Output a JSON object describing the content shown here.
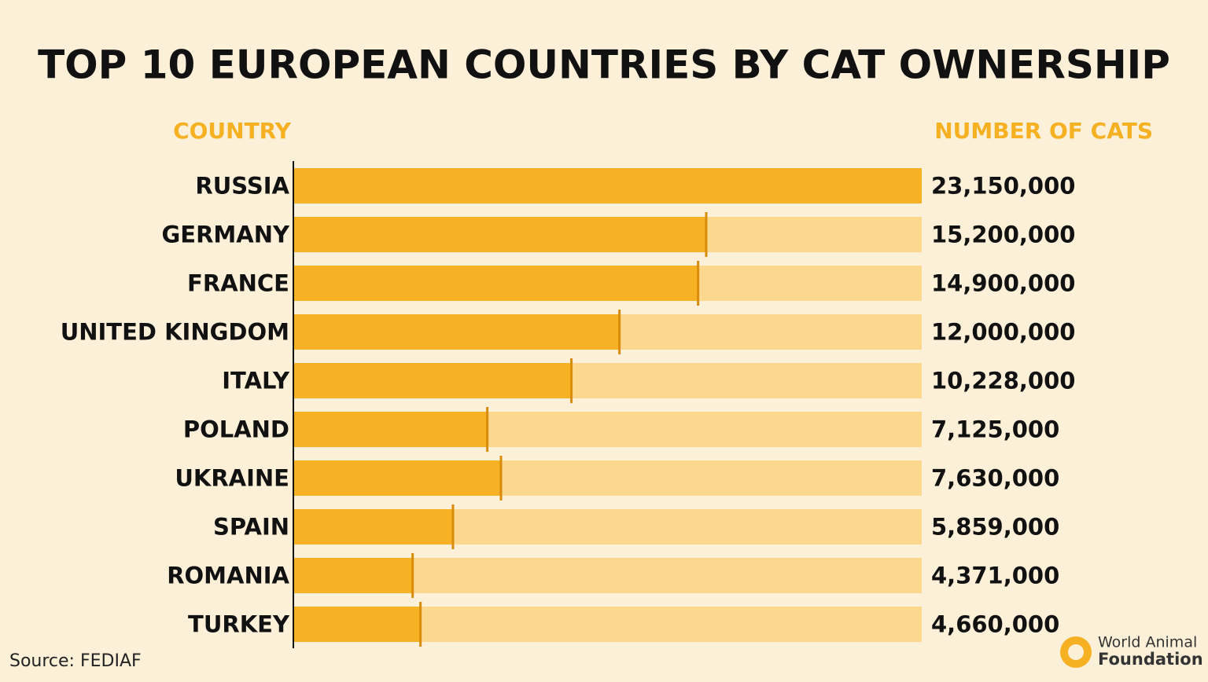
{
  "chart_data": {
    "type": "bar",
    "orientation": "horizontal",
    "title": "TOP 10 EUROPEAN COUNTRIES BY CAT OWNERSHIP",
    "category_header": "COUNTRY",
    "value_header": "NUMBER OF CATS",
    "categories": [
      "RUSSIA",
      "GERMANY",
      "FRANCE",
      "UNITED KINGDOM",
      "ITALY",
      "POLAND",
      "UKRAINE",
      "SPAIN",
      "ROMANIA",
      "TURKEY"
    ],
    "values": [
      23150000,
      15200000,
      14900000,
      12000000,
      10228000,
      7125000,
      7630000,
      5859000,
      4371000,
      4660000
    ],
    "value_labels": [
      "23,150,000",
      "15,200,000",
      "14,900,000",
      "12,000,000",
      "10,228,000",
      "7,125,000",
      "7,630,000",
      "5,859,000",
      "4,371,000",
      "4,660,000"
    ],
    "color": "#f7b124",
    "track_color": "#fcd78e",
    "marker_color": "#d98c0a",
    "header_color": "#f5b122",
    "source": "Source: FEDIAF",
    "logo": {
      "line1": "World Animal",
      "line2": "Foundation"
    }
  }
}
